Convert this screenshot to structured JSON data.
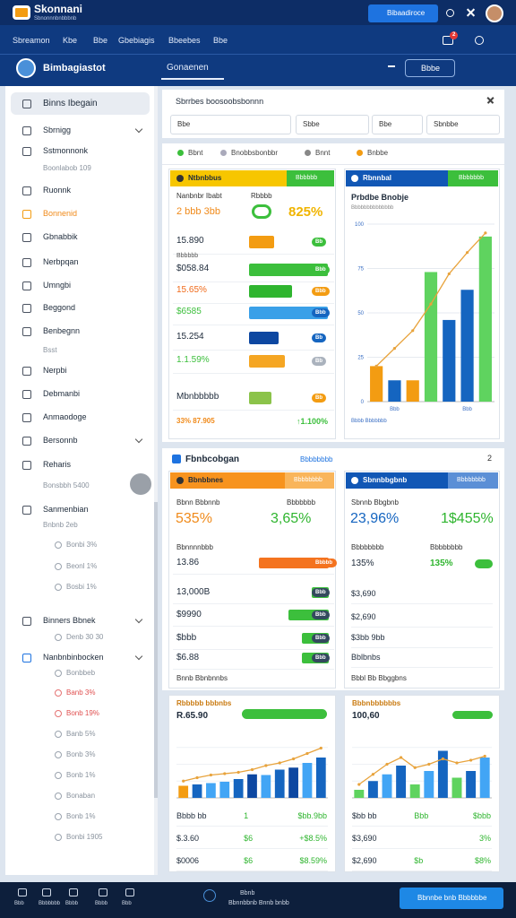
{
  "header": {
    "app_title": "Skonnani",
    "app_subtitle": "Sbnonnnbnbbbnb",
    "button": "Bibaadiroce"
  },
  "nav": {
    "tabs": [
      "Sbreamon",
      "Kbe",
      "Bbe",
      "Gbebiagis",
      "Bbeebes",
      "Bbe"
    ],
    "badge": "2"
  },
  "subheader": {
    "title": "Bimbagiastot",
    "tab": "Gonaenen",
    "select": "Bbbe"
  },
  "sidebar": {
    "items": [
      "Binns Ibegain",
      "Sbrnigg",
      "Sstmonnonk",
      "Boonlabob 109",
      "Ruonnk",
      "Bonnenid",
      "Gbnabbik",
      "Nerbpqan",
      "Umngbi",
      "Beggond",
      "Benbegnn",
      "Bsst",
      "Nerpbi",
      "Debmanbi",
      "Anmaodoge",
      "Bersonnb",
      "Reharis",
      "Bonsbbh 5400",
      "Sanmenbian",
      "Bnbnb 2eb",
      "Bonbi 3%",
      "Beonl 1%",
      "Bosbi 1%",
      "Binners Bbnek",
      "Denb 30 30",
      "Nanbnbinbocken",
      "Bonbbeb",
      "Banb 3%",
      "Bonb 19%",
      "Banb 5%",
      "Bonb 3%",
      "Bonb 1%",
      "Bonaban",
      "Bonb 1%",
      "Bonbi 1905"
    ]
  },
  "filters": {
    "title": "Sbrrbes boosoobsbonnn",
    "fields": [
      "Bbe",
      "Sbbe",
      "Bbe",
      "Sbnbbe"
    ]
  },
  "panel1": {
    "tabs": [
      "Bbnt",
      "Bnobbsbonbbr",
      "Bnnt",
      "Bnbbe"
    ],
    "left": {
      "title": "Ntbnbbus",
      "chip": "Bbbbbb",
      "label_a": "Nanbnbr Ibabt",
      "label_b": "Rbbbb",
      "lead": "2 bbb 3bb",
      "kpi": "825%",
      "xlim": [
        0,
        100
      ],
      "rows": [
        {
          "label": "15.890",
          "value": 32,
          "color": "#f39c12",
          "pill": "Bb",
          "pill_color": "#3cbf3c"
        },
        {
          "label": "$058.84",
          "note": "Bbbbbb",
          "value": 100,
          "color": "#3cbf3c",
          "pill": "Bbb",
          "pill_color": "#3cbf3c"
        },
        {
          "label": "15.65%",
          "value": 55,
          "color": "#2fb52f",
          "pill": "Bbb",
          "pill_color": "#f39c12",
          "label_color": "#f06a1a"
        },
        {
          "label": "$6585",
          "value": 100,
          "color": "#3aa0e8",
          "pill": "Bbb",
          "pill_color": "#1565c0",
          "label_color": "#3cbf3c"
        },
        {
          "label": "15.254",
          "value": 38,
          "color": "#0d47a1",
          "pill": "Bb",
          "pill_color": "#1565c0"
        },
        {
          "label": "1.1.59%",
          "value": 45,
          "color": "#f5a623",
          "pill": "Bb",
          "pill_color": "#aab2bd",
          "label_color": "#3cbf3c"
        },
        {
          "label": "Mbnbbbbb",
          "value": 28,
          "color": "#8bc34a",
          "pill": "Bb",
          "pill_color": "#f39c12"
        }
      ],
      "foot_a": "33% 87.905",
      "foot_b": "↑1.100%"
    },
    "right": {
      "title": "Rbnnbal",
      "chip": "Bbbbbbb",
      "chart": {
        "type": "bar",
        "title": "Prbdbe Bnobje",
        "subtitle": "Bbbbbbbbbbbbbb",
        "categories": [
          null,
          "Bbb",
          null,
          null,
          null,
          "Bbb",
          null
        ],
        "values": [
          20,
          12,
          12,
          73,
          46,
          63,
          93
        ],
        "colors": [
          "#f39c12",
          "#1565c0",
          "#f39c12",
          "#5fd35f",
          "#1565c0",
          "#1565c0",
          "#5fd35f"
        ],
        "line": [
          20,
          30,
          40,
          55,
          72,
          84,
          95
        ],
        "line_color": "#e8a33c",
        "ylim": [
          0,
          100
        ],
        "yticks": [
          0,
          25,
          50,
          75,
          100
        ],
        "grid": true,
        "caption": "Bbbb Bbbbbbb"
      }
    }
  },
  "panel2": {
    "title": "Fbnbcobgan",
    "link": "Bbbbbbbb",
    "count": "2",
    "left": {
      "title": "Bbnbbnes",
      "chip": "Bbbbbbbb",
      "label_a": "Bbnn Bbbnnb",
      "label_b": "Bbbbbbb",
      "kpi_a": "535%",
      "kpi_b": "3,65%",
      "row_head": "Bbnnnnbbb",
      "xlim": [
        0,
        100
      ],
      "rows": [
        {
          "label": "13.86",
          "value": 100,
          "color": "#f4731f",
          "pill": "Bbbbb",
          "pill_color": "#f4731f"
        },
        {
          "label": "13,000B",
          "value": 25,
          "color": "#3cbf3c",
          "pill": "Bbb",
          "pill_color": "#34495e"
        },
        {
          "label": "$9990",
          "value": 58,
          "color": "#3cbf3c",
          "pill": "Bbb",
          "pill_color": "#34495e"
        },
        {
          "label": "$bbb",
          "value": 38,
          "color": "#3cbf3c",
          "pill": "Bbb",
          "pill_color": "#34495e"
        },
        {
          "label": "$6.88",
          "value": 38,
          "color": "#3cbf3c",
          "pill": "Bbb",
          "pill_color": "#34495e"
        }
      ],
      "foot": "Bnnb Bbnbnnbs"
    },
    "right": {
      "title": "Sbnnbbgbnb",
      "chip": "Bbbbbbbb",
      "label": "Sbnnb Bbgbnb",
      "kpi_a": "23,96%",
      "kpi_b": "1$455%",
      "label_a": "Bbbbbbbb",
      "label_b": "Bbbbbbbb",
      "val_a": "135%",
      "val_b": "135%",
      "rows": [
        "$3,690",
        "$2,690",
        "$3bb 9bb",
        "Bblbnbs"
      ],
      "foot": "Bbbl Bb Bbggbns"
    }
  },
  "panel3": {
    "left": {
      "title": "Rbbbbb bbbnbs",
      "value": "R.65.90",
      "chart": {
        "type": "bar",
        "values": [
          18,
          20,
          22,
          24,
          28,
          35,
          34,
          42,
          45,
          52,
          60
        ],
        "colors": [
          "#f39c12",
          "#1565c0",
          "#42a5f5",
          "#42a5f5",
          "#1565c0",
          "#0d47a1",
          "#42a5f5",
          "#1565c0",
          "#0d47a1",
          "#42a5f5",
          "#1565c0"
        ],
        "line": [
          25,
          30,
          34,
          36,
          38,
          42,
          48,
          52,
          58,
          66,
          74
        ],
        "line_color": "#e8a33c",
        "ylim": [
          0,
          100
        ],
        "grid": true
      },
      "rows": [
        [
          "Bbbb bb",
          "1",
          "$bb.9bb"
        ],
        [
          "$.3.60",
          "$6",
          "+$8.5%"
        ],
        [
          "$0006",
          "$6",
          "$8.59%"
        ]
      ]
    },
    "right": {
      "title": "Bbbnbbbbbbs",
      "value": "100,60",
      "chart": {
        "type": "bar",
        "values": [
          12,
          25,
          35,
          48,
          20,
          40,
          70,
          30,
          40,
          60
        ],
        "colors": [
          "#5fd35f",
          "#1565c0",
          "#42a5f5",
          "#1565c0",
          "#5fd35f",
          "#42a5f5",
          "#1565c0",
          "#5fd35f",
          "#1565c0",
          "#42a5f5"
        ],
        "line": [
          20,
          35,
          50,
          60,
          45,
          50,
          58,
          52,
          56,
          62
        ],
        "line_color": "#e8a33c",
        "ylim": [
          0,
          100
        ],
        "grid": true
      },
      "rows": [
        [
          "$bb bb",
          "Bbb",
          "$bbb"
        ],
        [
          "$3,690",
          "3%"
        ],
        [
          "$2,690",
          "$b",
          "$8%"
        ]
      ]
    }
  },
  "footer": {
    "tabs": [
      "Bbb",
      "Bbbbbbb",
      "Bbbb",
      "Bbbb",
      "Bbb"
    ],
    "center_top": "Bbnb",
    "center": "Bbnnbbnb Bnnb bnbb",
    "button": "Bbnnbe bnb Bbbbbbe"
  }
}
